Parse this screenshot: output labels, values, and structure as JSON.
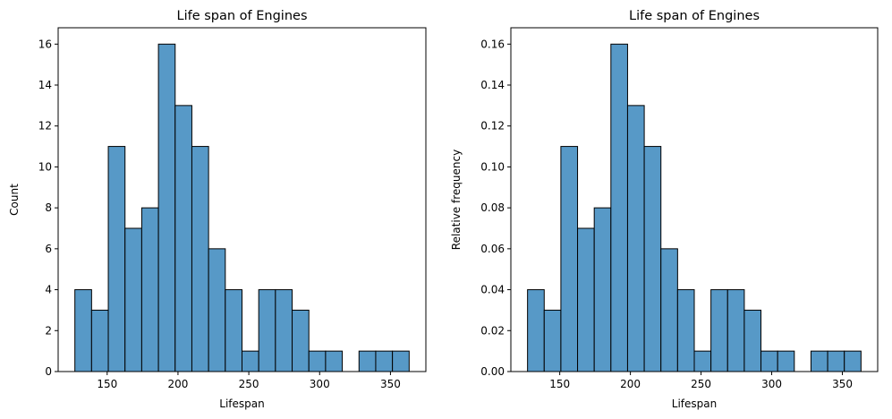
{
  "chart_data": [
    {
      "type": "bar",
      "title": "Life span of Engines",
      "xlabel": "Lifespan",
      "ylabel": "Count",
      "bar_color": "#5799c7",
      "bin_edges": [
        127.2,
        139.0,
        150.8,
        162.6,
        174.4,
        186.2,
        198.0,
        209.8,
        221.6,
        233.4,
        245.2,
        257.0,
        268.8,
        280.6,
        292.4,
        304.2,
        316.0,
        327.8,
        339.6,
        351.4,
        363.2
      ],
      "values": [
        4,
        3,
        11,
        7,
        8,
        16,
        13,
        11,
        6,
        4,
        1,
        4,
        4,
        3,
        1,
        1,
        0,
        1,
        1,
        1
      ],
      "xlim": [
        115.4,
        375.0
      ],
      "ylim": [
        0,
        16.8
      ],
      "xticks": [
        150,
        200,
        250,
        300,
        350
      ],
      "xtick_labels": [
        "150",
        "200",
        "250",
        "300",
        "350"
      ],
      "yticks": [
        0,
        2,
        4,
        6,
        8,
        10,
        12,
        14,
        16
      ],
      "ytick_labels": [
        "0",
        "2",
        "4",
        "6",
        "8",
        "10",
        "12",
        "14",
        "16"
      ]
    },
    {
      "type": "bar",
      "title": "Life span of Engines",
      "xlabel": "Lifespan",
      "ylabel": "Relative frequency",
      "bar_color": "#5799c7",
      "bin_edges": [
        127.2,
        139.0,
        150.8,
        162.6,
        174.4,
        186.2,
        198.0,
        209.8,
        221.6,
        233.4,
        245.2,
        257.0,
        268.8,
        280.6,
        292.4,
        304.2,
        316.0,
        327.8,
        339.6,
        351.4,
        363.2
      ],
      "values": [
        0.04,
        0.03,
        0.11,
        0.07,
        0.08,
        0.16,
        0.13,
        0.11,
        0.06,
        0.04,
        0.01,
        0.04,
        0.04,
        0.03,
        0.01,
        0.01,
        0,
        0.01,
        0.01,
        0.01
      ],
      "xlim": [
        115.4,
        375.0
      ],
      "ylim": [
        0,
        0.168
      ],
      "xticks": [
        150,
        200,
        250,
        300,
        350
      ],
      "xtick_labels": [
        "150",
        "200",
        "250",
        "300",
        "350"
      ],
      "yticks": [
        0,
        0.02,
        0.04,
        0.06,
        0.08,
        0.1,
        0.12,
        0.14,
        0.16
      ],
      "ytick_labels": [
        "0.00",
        "0.02",
        "0.04",
        "0.06",
        "0.08",
        "0.10",
        "0.12",
        "0.14",
        "0.16"
      ]
    }
  ]
}
